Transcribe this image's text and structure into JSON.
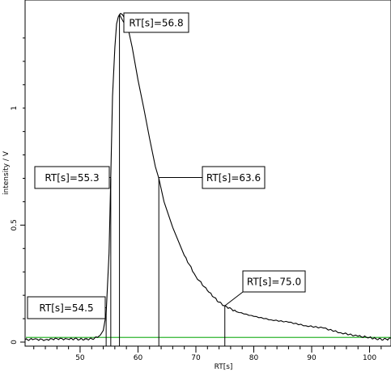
{
  "chart_data": {
    "type": "line",
    "xlabel": "RT[s]",
    "ylabel": "intensity / V",
    "xlim": [
      40.5,
      103.7
    ],
    "ylim": [
      0,
      1.4
    ],
    "x_ticks": [
      50,
      60,
      70,
      80,
      90,
      100
    ],
    "y_ticks": [
      {
        "value": 0,
        "label": "0"
      },
      {
        "value": 0.5,
        "label": "0.5"
      },
      {
        "value": 1,
        "label": "1"
      }
    ],
    "baseline": {
      "value": 0.02,
      "color": "#2fb52f"
    },
    "series": [
      {
        "color": "#000000",
        "x": [
          40.5,
          42,
          44,
          46,
          48,
          49,
          50,
          51,
          52,
          53,
          53.5,
          54,
          54.5,
          55,
          55.3,
          55.6,
          56,
          56.3,
          56.6,
          56.8,
          57.0,
          57.3,
          57.8,
          58.3,
          59.0,
          60.0,
          61.0,
          62.0,
          63.0,
          63.6,
          64.5,
          66,
          68,
          70,
          72,
          74,
          75,
          77,
          80,
          83,
          86,
          89,
          92,
          95,
          98,
          100,
          101,
          102,
          103,
          103.7
        ],
        "y": [
          0.01,
          0.012,
          0.01,
          0.015,
          0.012,
          0.014,
          0.012,
          0.013,
          0.014,
          0.02,
          0.03,
          0.05,
          0.12,
          0.38,
          0.7,
          1.05,
          1.26,
          1.36,
          1.39,
          1.4,
          1.405,
          1.4,
          1.38,
          1.34,
          1.26,
          1.12,
          1.0,
          0.87,
          0.75,
          0.7,
          0.6,
          0.49,
          0.37,
          0.28,
          0.22,
          0.17,
          0.155,
          0.13,
          0.11,
          0.095,
          0.085,
          0.07,
          0.06,
          0.04,
          0.025,
          0.02,
          0.015,
          0.012,
          0.012,
          0.015
        ]
      }
    ],
    "annotations": [
      {
        "label": "RT[s]=54.5",
        "x": 54.5
      },
      {
        "label": "RT[s]=55.3",
        "x": 55.3
      },
      {
        "label": "RT[s]=56.8",
        "x": 56.8
      },
      {
        "label": "RT[s]=63.6",
        "x": 63.6
      },
      {
        "label": "RT[s]=75.0",
        "x": 75.0
      }
    ]
  }
}
